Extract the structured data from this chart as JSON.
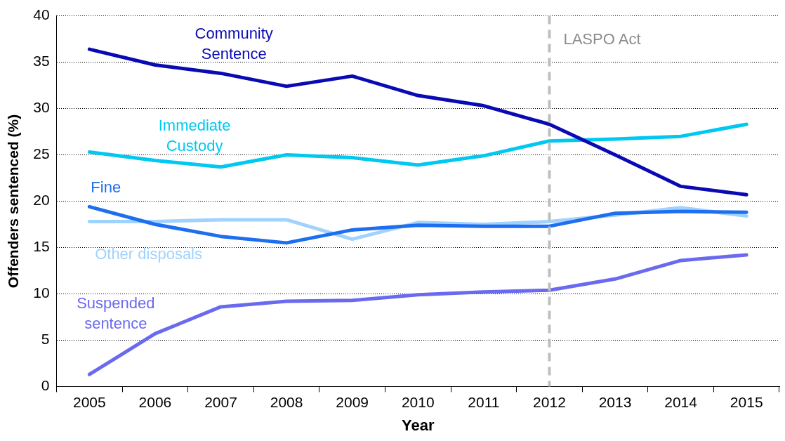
{
  "chart_data": {
    "type": "line",
    "xlabel": "Year",
    "ylabel": "Offenders sentenced (%)",
    "categories": [
      "2005",
      "2006",
      "2007",
      "2008",
      "2009",
      "2010",
      "2011",
      "2012",
      "2013",
      "2014",
      "2015"
    ],
    "series": [
      {
        "name": "Community Sentence",
        "color": "#0a0ab4",
        "values": [
          36.4,
          34.7,
          33.8,
          32.4,
          33.5,
          31.4,
          30.3,
          28.3,
          25.0,
          21.6,
          20.7
        ]
      },
      {
        "name": "Immediate Custody",
        "color": "#00c8f0",
        "values": [
          25.3,
          24.4,
          23.7,
          25.0,
          24.7,
          23.9,
          24.9,
          26.5,
          26.7,
          27.0,
          28.3
        ]
      },
      {
        "name": "Fine",
        "color": "#1e6ef0",
        "values": [
          19.4,
          17.5,
          16.2,
          15.5,
          16.9,
          17.4,
          17.3,
          17.3,
          18.7,
          18.9,
          18.8
        ]
      },
      {
        "name": "Other disposals",
        "color": "#a0d2ff",
        "values": [
          17.8,
          17.8,
          18.0,
          18.0,
          15.9,
          17.7,
          17.5,
          17.8,
          18.5,
          19.3,
          18.4
        ]
      },
      {
        "name": "Suspended sentence",
        "color": "#6a6af0",
        "values": [
          1.3,
          5.7,
          8.6,
          9.2,
          9.3,
          9.9,
          10.2,
          10.4,
          11.6,
          13.6,
          14.2
        ]
      }
    ],
    "ylim": [
      0,
      40
    ],
    "yticks": [
      0,
      5,
      10,
      15,
      20,
      25,
      30,
      35,
      40
    ],
    "grid": "y",
    "legend": false,
    "marker": "none",
    "line_style": "solid",
    "ref_lines": [
      {
        "axis": "x",
        "value": "2012",
        "label": "LASPO Act",
        "color": "#bfbfbf",
        "line_style": "dashed"
      }
    ]
  }
}
